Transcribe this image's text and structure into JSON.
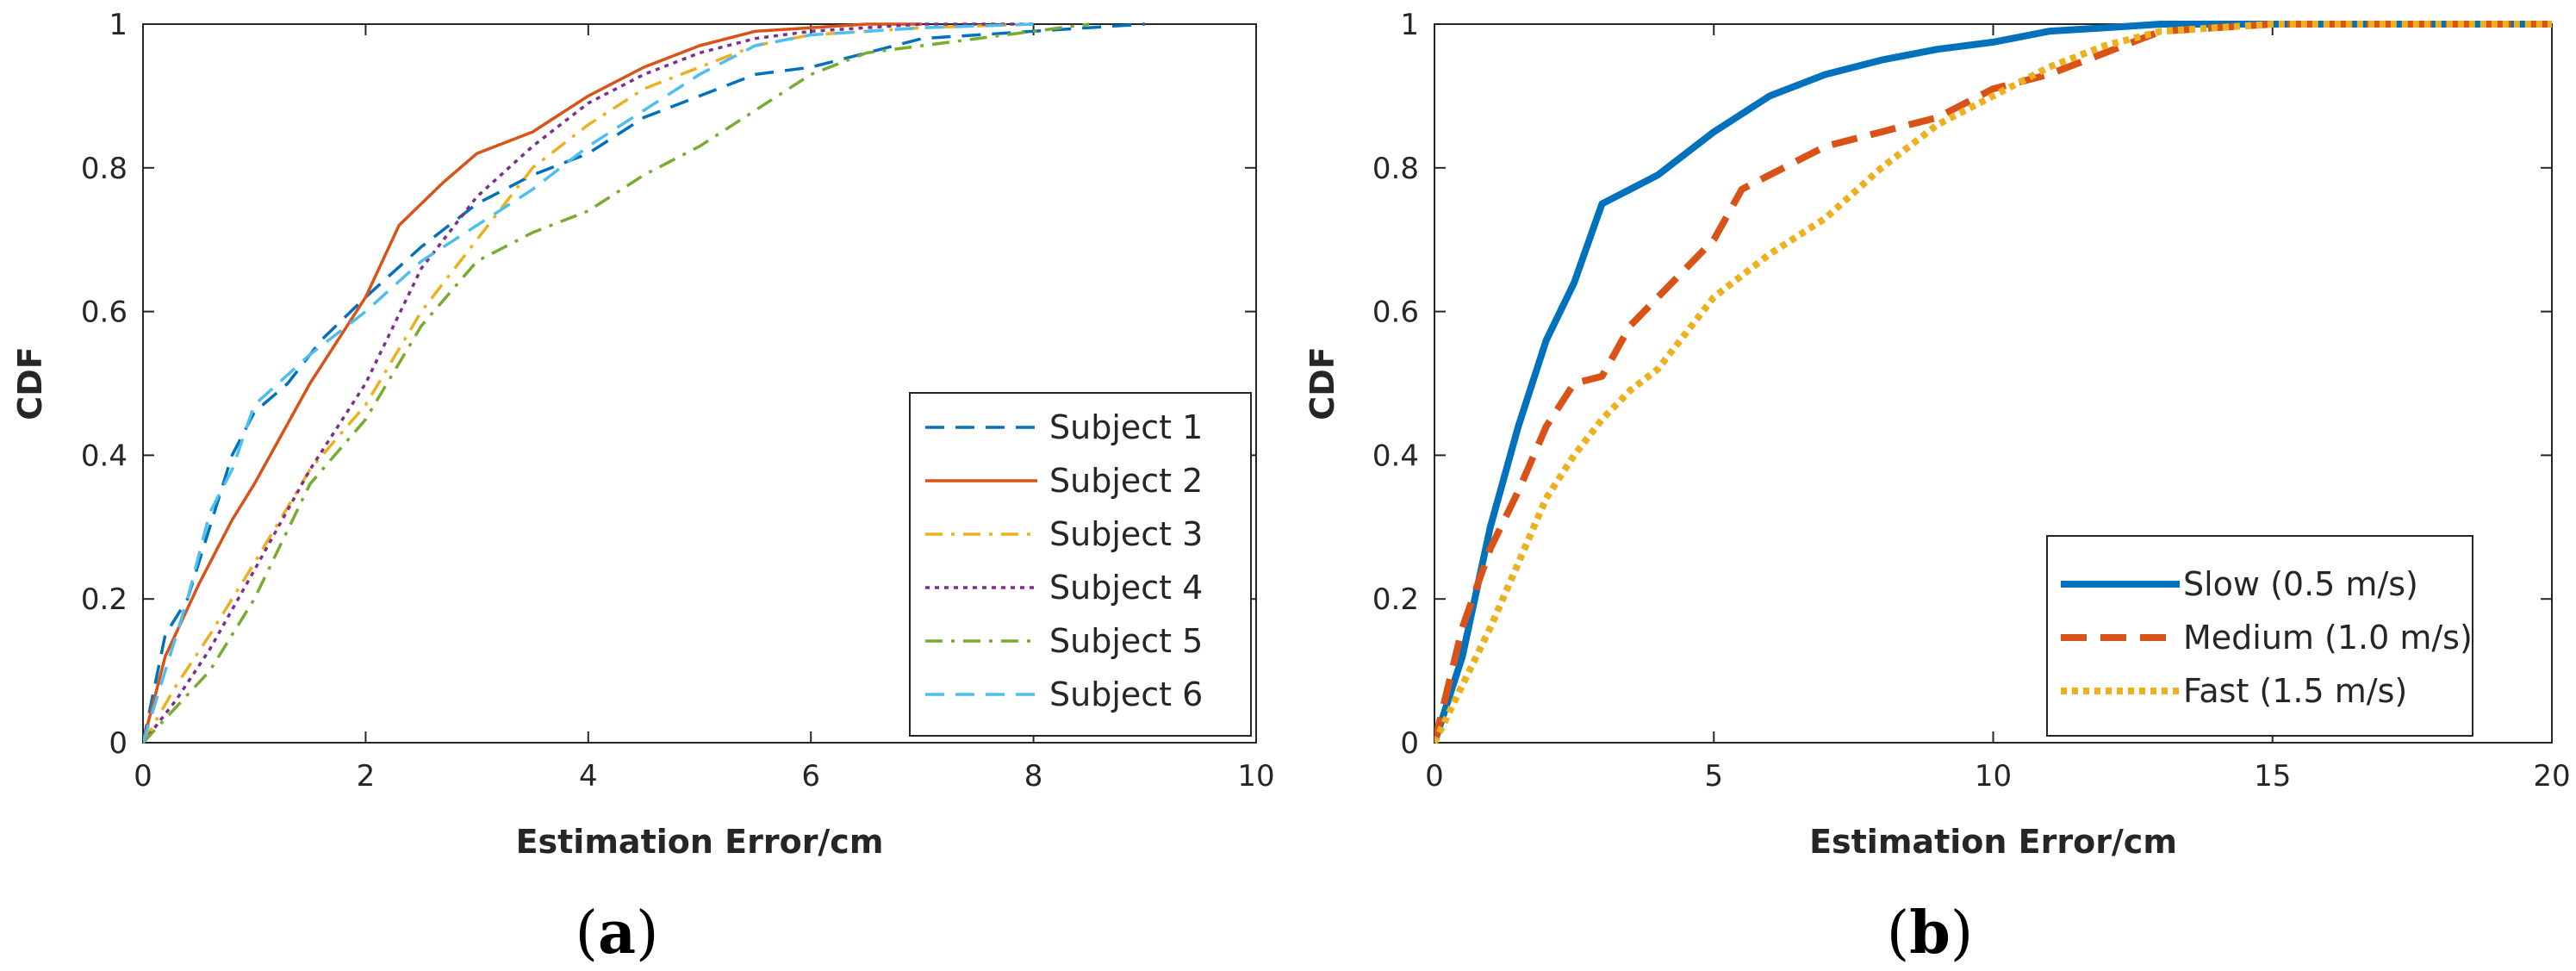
{
  "chart_data": [
    {
      "type": "line",
      "panel_label": "a",
      "title": "",
      "xlabel": "Estimation Error/cm",
      "ylabel": "CDF",
      "xlim": [
        0,
        10
      ],
      "ylim": [
        0,
        1
      ],
      "xticks": [
        0,
        2,
        4,
        6,
        8,
        10
      ],
      "yticks": [
        0,
        0.2,
        0.4,
        0.6,
        0.8,
        1
      ],
      "xtick_labels": [
        "0",
        "2",
        "4",
        "6",
        "8",
        "10"
      ],
      "ytick_labels": [
        "0",
        "0.2",
        "0.4",
        "0.6",
        "0.8",
        "1"
      ],
      "legend_position": "lower-right",
      "series": [
        {
          "name": "Subject 1",
          "color": "#0072BD",
          "style": "dashed",
          "x": [
            0,
            0.2,
            0.4,
            0.6,
            0.8,
            1.0,
            1.3,
            1.6,
            2.0,
            2.5,
            3.0,
            3.5,
            4.0,
            4.5,
            5.0,
            5.5,
            6.0,
            6.5,
            7.0,
            8.0,
            9.0
          ],
          "y": [
            0,
            0.15,
            0.2,
            0.3,
            0.4,
            0.46,
            0.5,
            0.56,
            0.62,
            0.69,
            0.75,
            0.79,
            0.82,
            0.87,
            0.9,
            0.93,
            0.94,
            0.96,
            0.98,
            0.99,
            1.0
          ]
        },
        {
          "name": "Subject 2",
          "color": "#D95319",
          "style": "solid",
          "x": [
            0,
            0.2,
            0.5,
            0.8,
            1.0,
            1.5,
            2.0,
            2.3,
            2.7,
            3.0,
            3.5,
            4.0,
            4.5,
            5.0,
            5.5,
            6.0,
            6.5,
            7.0
          ],
          "y": [
            0,
            0.12,
            0.22,
            0.31,
            0.36,
            0.5,
            0.62,
            0.72,
            0.78,
            0.82,
            0.85,
            0.9,
            0.94,
            0.97,
            0.99,
            0.995,
            1.0,
            1.0
          ]
        },
        {
          "name": "Subject 3",
          "color": "#EDB120",
          "style": "dashdot",
          "x": [
            0,
            0.3,
            0.6,
            1.0,
            1.5,
            2.0,
            2.5,
            3.0,
            3.5,
            4.0,
            4.5,
            5.0,
            5.5,
            6.0,
            7.0,
            8.0
          ],
          "y": [
            0,
            0.08,
            0.15,
            0.25,
            0.38,
            0.47,
            0.6,
            0.7,
            0.8,
            0.86,
            0.91,
            0.94,
            0.97,
            0.985,
            0.995,
            1.0
          ]
        },
        {
          "name": "Subject 4",
          "color": "#7E2F8E",
          "style": "dotted",
          "x": [
            0,
            0.3,
            0.6,
            1.0,
            1.5,
            2.0,
            2.5,
            3.0,
            3.5,
            4.0,
            4.5,
            5.0,
            5.5,
            6.0,
            7.0,
            8.0
          ],
          "y": [
            0,
            0.06,
            0.13,
            0.24,
            0.38,
            0.5,
            0.66,
            0.76,
            0.83,
            0.89,
            0.93,
            0.96,
            0.98,
            0.99,
            1.0,
            1.0
          ]
        },
        {
          "name": "Subject 5",
          "color": "#77AC30",
          "style": "dashdot",
          "x": [
            0,
            0.3,
            0.6,
            1.0,
            1.5,
            2.0,
            2.5,
            3.0,
            3.5,
            4.0,
            4.5,
            5.0,
            5.5,
            6.0,
            6.5,
            7.0,
            7.5,
            8.0,
            8.5
          ],
          "y": [
            0,
            0.05,
            0.1,
            0.2,
            0.36,
            0.45,
            0.58,
            0.67,
            0.71,
            0.74,
            0.79,
            0.83,
            0.88,
            0.93,
            0.96,
            0.97,
            0.98,
            0.99,
            1.0
          ]
        },
        {
          "name": "Subject 6",
          "color": "#4DBEEE",
          "style": "dashed",
          "x": [
            0,
            0.2,
            0.4,
            0.6,
            0.8,
            1.0,
            1.5,
            2.0,
            2.5,
            3.0,
            3.5,
            4.0,
            4.5,
            5.0,
            5.5,
            6.0,
            7.0,
            8.0
          ],
          "y": [
            0,
            0.1,
            0.2,
            0.32,
            0.38,
            0.47,
            0.54,
            0.6,
            0.67,
            0.72,
            0.77,
            0.83,
            0.88,
            0.93,
            0.97,
            0.985,
            0.995,
            1.0
          ]
        }
      ]
    },
    {
      "type": "line",
      "panel_label": "b",
      "title": "",
      "xlabel": "Estimation Error/cm",
      "ylabel": "CDF",
      "xlim": [
        0,
        20
      ],
      "ylim": [
        0,
        1
      ],
      "xticks": [
        0,
        5,
        10,
        15,
        20
      ],
      "yticks": [
        0,
        0.2,
        0.4,
        0.6,
        0.8,
        1
      ],
      "xtick_labels": [
        "0",
        "5",
        "10",
        "15",
        "20"
      ],
      "ytick_labels": [
        "0",
        "0.2",
        "0.4",
        "0.6",
        "0.8",
        "1"
      ],
      "legend_position": "lower-right",
      "series": [
        {
          "name": "Slow (0.5 m/s)",
          "color": "#0072BD",
          "style": "solid",
          "x": [
            0,
            0.5,
            1.0,
            1.5,
            2.0,
            2.5,
            3.0,
            3.5,
            4.0,
            5.0,
            6.0,
            7.0,
            8.0,
            9.0,
            10.0,
            11.0,
            12.0,
            13.0,
            15.0,
            20.0
          ],
          "y": [
            0,
            0.12,
            0.3,
            0.44,
            0.56,
            0.64,
            0.75,
            0.77,
            0.79,
            0.85,
            0.9,
            0.93,
            0.95,
            0.965,
            0.975,
            0.99,
            0.995,
            1.0,
            1.0,
            1.0
          ]
        },
        {
          "name": "Medium (1.0 m/s)",
          "color": "#D95319",
          "style": "dashed",
          "x": [
            0,
            0.5,
            1.0,
            1.5,
            2.0,
            2.5,
            3.0,
            3.5,
            4.0,
            5.0,
            5.5,
            6.0,
            7.0,
            8.0,
            9.0,
            10.0,
            11.0,
            12.0,
            13.0,
            15.0,
            20.0
          ],
          "y": [
            0,
            0.16,
            0.27,
            0.35,
            0.44,
            0.5,
            0.51,
            0.58,
            0.62,
            0.7,
            0.77,
            0.79,
            0.83,
            0.85,
            0.87,
            0.91,
            0.93,
            0.96,
            0.99,
            1.0,
            1.0
          ]
        },
        {
          "name": "Fast (1.5 m/s)",
          "color": "#EDB120",
          "style": "dotted",
          "x": [
            0,
            0.5,
            1.0,
            1.5,
            2.0,
            2.5,
            3.0,
            3.5,
            4.0,
            5.0,
            6.0,
            7.0,
            8.0,
            9.0,
            10.0,
            11.0,
            12.0,
            13.0,
            15.0,
            20.0
          ],
          "y": [
            0,
            0.08,
            0.16,
            0.25,
            0.34,
            0.4,
            0.45,
            0.49,
            0.52,
            0.62,
            0.68,
            0.73,
            0.8,
            0.86,
            0.9,
            0.94,
            0.97,
            0.99,
            1.0,
            1.0
          ]
        }
      ]
    }
  ]
}
